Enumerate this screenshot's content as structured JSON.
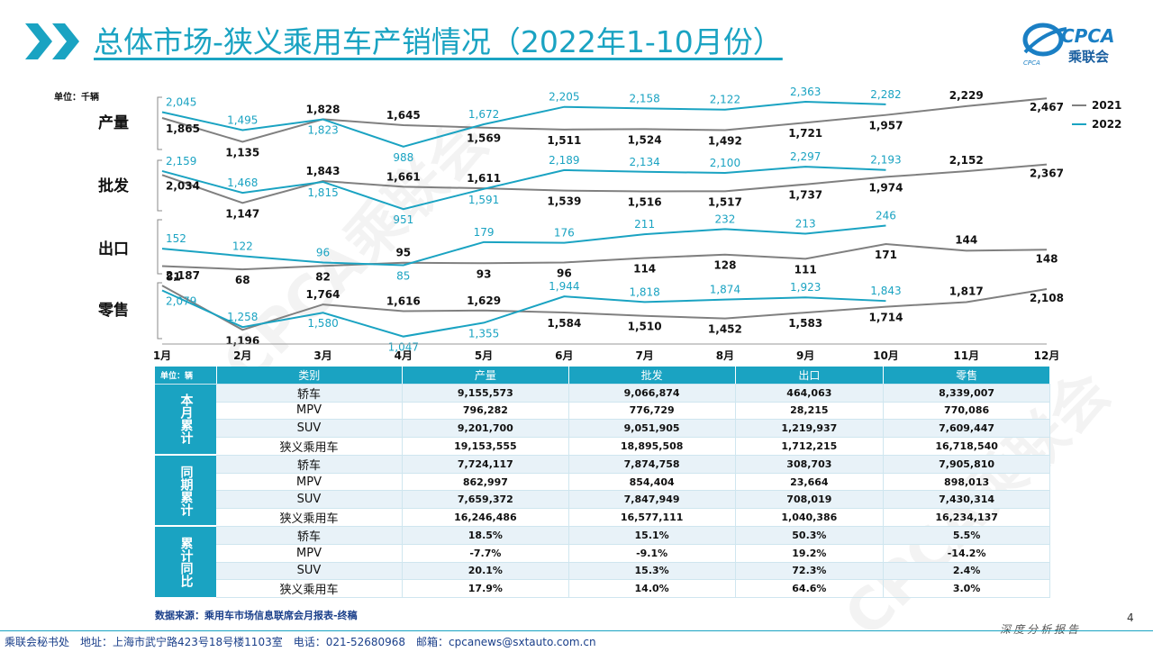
{
  "header": {
    "title": "总体市场-狭义乘用车产销情况（2022年1-10月份）",
    "logo_text": "CPCA",
    "logo_cn": "乘联会",
    "logo_sub": "CPCA"
  },
  "watermark": "CPCA乘联会",
  "chart_data": {
    "type": "line",
    "unit_label": "单位：千辆",
    "x": [
      "1月",
      "2月",
      "3月",
      "4月",
      "5月",
      "6月",
      "7月",
      "8月",
      "9月",
      "10月",
      "11月",
      "12月"
    ],
    "legend": [
      "2021",
      "2022"
    ],
    "colors": {
      "2021": "#808080",
      "2022": "#1aa3c2"
    },
    "panels": [
      {
        "name": "产量",
        "s2021": [
          1865,
          1135,
          1828,
          1645,
          1569,
          1511,
          1524,
          1492,
          1721,
          1957,
          2229,
          2467
        ],
        "s2022": [
          2045,
          1495,
          1823,
          988,
          1672,
          2205,
          2158,
          2122,
          2363,
          2282
        ],
        "l2021": [
          "1,865",
          "1,135",
          "1,828",
          "1,645",
          "1,569",
          "1,511",
          "1,524",
          "1,492",
          "1,721",
          "1,957",
          "2,229",
          "2,467"
        ],
        "l2022": [
          "2,045",
          "1,495",
          "1,823",
          "988",
          "1,672",
          "2,205",
          "2,158",
          "2,122",
          "2,363",
          "2,282"
        ]
      },
      {
        "name": "批发",
        "s2021": [
          2034,
          1147,
          1843,
          1661,
          1611,
          1539,
          1516,
          1517,
          1737,
          1974,
          2152,
          2367
        ],
        "s2022": [
          2159,
          1468,
          1815,
          951,
          1591,
          2189,
          2134,
          2100,
          2297,
          2193
        ],
        "l2021": [
          "2,034",
          "1,147",
          "1,843",
          "1,661",
          "1,611",
          "1,539",
          "1,516",
          "1,517",
          "1,737",
          "1,974",
          "2,152",
          "2,367"
        ],
        "l2022": [
          "2,159",
          "1,468",
          "1,815",
          "951",
          "1,591",
          "2,189",
          "2,134",
          "2,100",
          "2,297",
          "2,193"
        ]
      },
      {
        "name": "出口",
        "s2021": [
          81,
          68,
          82,
          95,
          93,
          96,
          114,
          128,
          111,
          171,
          144,
          148
        ],
        "s2022": [
          152,
          122,
          96,
          85,
          179,
          176,
          211,
          232,
          213,
          246
        ],
        "l2021": [
          "81",
          "68",
          "82",
          "95",
          "93",
          "96",
          "114",
          "128",
          "111",
          "171",
          "144",
          "148"
        ],
        "l2022": [
          "152",
          "122",
          "96",
          "85",
          "179",
          "176",
          "211",
          "232",
          "213",
          "246"
        ]
      },
      {
        "name": "零售",
        "s2021": [
          2187,
          1196,
          1764,
          1616,
          1629,
          1584,
          1510,
          1452,
          1583,
          1714,
          1817,
          2108
        ],
        "s2022": [
          2079,
          1258,
          1580,
          1047,
          1355,
          1944,
          1818,
          1874,
          1923,
          1843
        ],
        "l2021": [
          "2,187",
          "1,196",
          "1,764",
          "1,616",
          "1,629",
          "1,584",
          "1,510",
          "1,452",
          "1,583",
          "1,714",
          "1,817",
          "2,108"
        ],
        "l2022": [
          "2,079",
          "1,258",
          "1,580",
          "1,047",
          "1,355",
          "1,944",
          "1,818",
          "1,874",
          "1,923",
          "1,843"
        ]
      }
    ]
  },
  "table": {
    "unit": "单位：辆",
    "headers": [
      "类别",
      "产量",
      "批发",
      "出口",
      "零售"
    ],
    "groups": [
      {
        "label": "本月累计",
        "rows": [
          [
            "轿车",
            "9,155,573",
            "9,066,874",
            "464,063",
            "8,339,007"
          ],
          [
            "MPV",
            "796,282",
            "776,729",
            "28,215",
            "770,086"
          ],
          [
            "SUV",
            "9,201,700",
            "9,051,905",
            "1,219,937",
            "7,609,447"
          ],
          [
            "狭义乘用车",
            "19,153,555",
            "18,895,508",
            "1,712,215",
            "16,718,540"
          ]
        ]
      },
      {
        "label": "同期累计",
        "rows": [
          [
            "轿车",
            "7,724,117",
            "7,874,758",
            "308,703",
            "7,905,810"
          ],
          [
            "MPV",
            "862,997",
            "854,404",
            "23,664",
            "898,013"
          ],
          [
            "SUV",
            "7,659,372",
            "7,847,949",
            "708,019",
            "7,430,314"
          ],
          [
            "狭义乘用车",
            "16,246,486",
            "16,577,111",
            "1,040,386",
            "16,234,137"
          ]
        ]
      },
      {
        "label": "累计同比",
        "rows": [
          [
            "轿车",
            "18.5%",
            "15.1%",
            "50.3%",
            "5.5%"
          ],
          [
            "MPV",
            "-7.7%",
            "-9.1%",
            "19.2%",
            "-14.2%"
          ],
          [
            "SUV",
            "20.1%",
            "15.3%",
            "72.3%",
            "2.4%"
          ],
          [
            "狭义乘用车",
            "17.9%",
            "14.0%",
            "64.6%",
            "3.0%"
          ]
        ]
      }
    ]
  },
  "source": "数据来源：乘用车市场信息联席会月报表-终稿",
  "page_number": "4",
  "footer": "乘联会秘书处　地址：上海市武宁路423号18号楼1103室　电话：021-52680968　邮箱：cpcanews@sxtauto.com.cn",
  "footer_right": "深度分析报告"
}
